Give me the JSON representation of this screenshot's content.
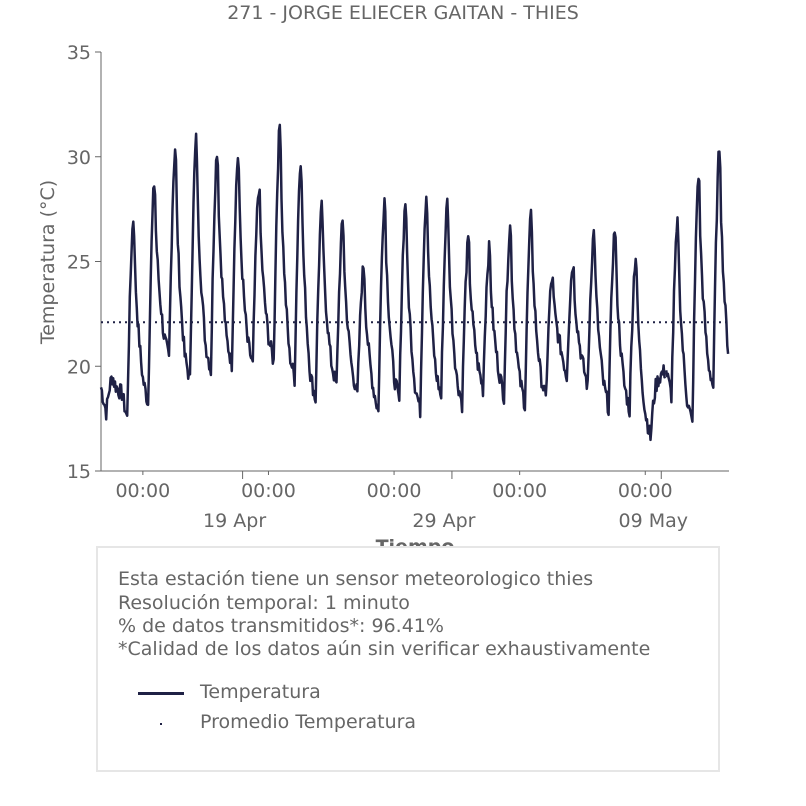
{
  "title": "271 - JORGE ELIECER GAITAN - THIES",
  "colors": {
    "series": "#1f2145",
    "text": "#666666",
    "axis": "#666666",
    "box_border": "#e6e6e6"
  },
  "chart_data": {
    "type": "line",
    "title": "271 - JORGE ELIECER GAITAN - THIES",
    "xlabel": "Tiempo",
    "ylabel": "Temperatura (°C)",
    "ylim": [
      15,
      35
    ],
    "yticks": [
      15,
      20,
      25,
      30,
      35
    ],
    "xlim": [
      "2024-04-13",
      "2024-05-12"
    ],
    "x_major_ticks": [
      {
        "date": "2024-04-19",
        "label": "19 Apr"
      },
      {
        "date": "2024-04-29",
        "label": "29 Apr"
      },
      {
        "date": "2024-05-09",
        "label": "09 May"
      }
    ],
    "x_minor_ticks": [
      {
        "date": "2024-04-15",
        "label": "00:00"
      },
      {
        "date": "2024-04-21",
        "label": "00:00"
      },
      {
        "date": "2024-04-27",
        "label": "00:00"
      },
      {
        "date": "2024-05-03",
        "label": "00:00"
      },
      {
        "date": "2024-05-09",
        "label": "00:00"
      }
    ],
    "grid": false,
    "series": [
      {
        "name": "Temperatura",
        "style": "solid",
        "daily_range": [
          {
            "date": "2024-04-13",
            "min": 17.8,
            "max": 19.5
          },
          {
            "date": "2024-04-14",
            "min": 17.5,
            "max": 27.2
          },
          {
            "date": "2024-04-15",
            "min": 18.2,
            "max": 28.9
          },
          {
            "date": "2024-04-16",
            "min": 20.3,
            "max": 30.6
          },
          {
            "date": "2024-04-17",
            "min": 19.3,
            "max": 31.0
          },
          {
            "date": "2024-04-18",
            "min": 19.8,
            "max": 30.5
          },
          {
            "date": "2024-04-19",
            "min": 20.1,
            "max": 30.2
          },
          {
            "date": "2024-04-20",
            "min": 20.0,
            "max": 28.7
          },
          {
            "date": "2024-04-21",
            "min": 20.2,
            "max": 31.7
          },
          {
            "date": "2024-04-22",
            "min": 19.4,
            "max": 30.1
          },
          {
            "date": "2024-04-23",
            "min": 18.4,
            "max": 27.7
          },
          {
            "date": "2024-04-24",
            "min": 19.0,
            "max": 27.0
          },
          {
            "date": "2024-04-25",
            "min": 18.6,
            "max": 24.9
          },
          {
            "date": "2024-04-26",
            "min": 17.8,
            "max": 28.2
          },
          {
            "date": "2024-04-27",
            "min": 18.3,
            "max": 28.0
          },
          {
            "date": "2024-04-28",
            "min": 17.9,
            "max": 28.4
          },
          {
            "date": "2024-04-29",
            "min": 18.5,
            "max": 28.0
          },
          {
            "date": "2024-04-30",
            "min": 18.2,
            "max": 26.1
          },
          {
            "date": "2024-05-01",
            "min": 18.9,
            "max": 25.7
          },
          {
            "date": "2024-05-02",
            "min": 18.6,
            "max": 26.8
          },
          {
            "date": "2024-05-03",
            "min": 18.2,
            "max": 27.3
          },
          {
            "date": "2024-05-04",
            "min": 18.4,
            "max": 24.3
          },
          {
            "date": "2024-05-05",
            "min": 19.5,
            "max": 25.0
          },
          {
            "date": "2024-05-06",
            "min": 19.0,
            "max": 26.5
          },
          {
            "date": "2024-05-07",
            "min": 18.0,
            "max": 26.7
          },
          {
            "date": "2024-05-08",
            "min": 17.9,
            "max": 25.4
          },
          {
            "date": "2024-05-09",
            "min": 16.6,
            "max": 19.2
          },
          {
            "date": "2024-05-10",
            "min": 18.6,
            "max": 26.9
          },
          {
            "date": "2024-05-11",
            "min": 17.2,
            "max": 29.4
          },
          {
            "date": "2024-05-12",
            "min": 19.0,
            "max": 30.7
          }
        ]
      },
      {
        "name": "Promedio Temperatura",
        "style": "dotted",
        "value": 22.1
      }
    ]
  },
  "info": {
    "line1": "Esta estación tiene un sensor meteorologico thies",
    "line2": "Resolución temporal: 1 minuto",
    "line3": "% de datos transmitidos*: 96.41%",
    "line4": "*Calidad de los datos aún sin verificar exhaustivamente"
  },
  "legend": {
    "items": [
      {
        "label": "Temperatura",
        "icon": "solid-line-swatch"
      },
      {
        "label": "Promedio Temperatura",
        "icon": "dot-swatch"
      }
    ]
  }
}
